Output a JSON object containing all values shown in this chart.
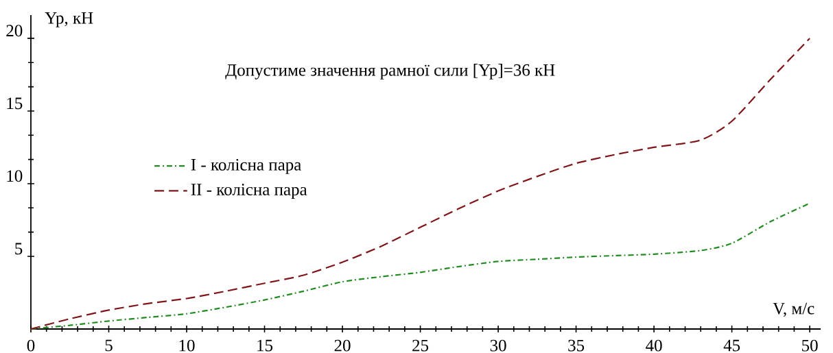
{
  "chart_data": {
    "type": "line",
    "xlabel": "V, м/с",
    "ylabel": "Yp, кН",
    "annotations": [
      "Допустиме значення рамної сили [Yp]=36 кН"
    ],
    "x": [
      0,
      2.5,
      5,
      7.5,
      10,
      12.5,
      15,
      17.5,
      20,
      22.5,
      25,
      27.5,
      30,
      32.5,
      35,
      37.5,
      40,
      43,
      45,
      47.5,
      50
    ],
    "series": [
      {
        "name": "I - колісна пара",
        "color": "#228b22",
        "line_style": "dashdot",
        "values": [
          0,
          0.25,
          0.55,
          0.8,
          1.05,
          1.5,
          2.0,
          2.6,
          3.25,
          3.6,
          3.9,
          4.3,
          4.65,
          4.8,
          4.95,
          5.05,
          5.15,
          5.4,
          5.9,
          7.4,
          8.65
        ]
      },
      {
        "name": "II - колісна пара",
        "color": "#7f1518",
        "line_style": "dashed",
        "values": [
          0,
          0.7,
          1.3,
          1.75,
          2.1,
          2.6,
          3.15,
          3.7,
          4.6,
          5.7,
          7.0,
          8.3,
          9.5,
          10.5,
          11.4,
          12.0,
          12.5,
          13.0,
          14.3,
          17.2,
          20.0
        ]
      }
    ],
    "xlim": [
      0,
      50.7
    ],
    "ylim": [
      0,
      21.6
    ],
    "xticks": [
      0,
      5,
      10,
      15,
      20,
      25,
      30,
      35,
      40,
      45,
      50
    ],
    "yticks": [
      5,
      10,
      15,
      20
    ],
    "legend": "left"
  }
}
